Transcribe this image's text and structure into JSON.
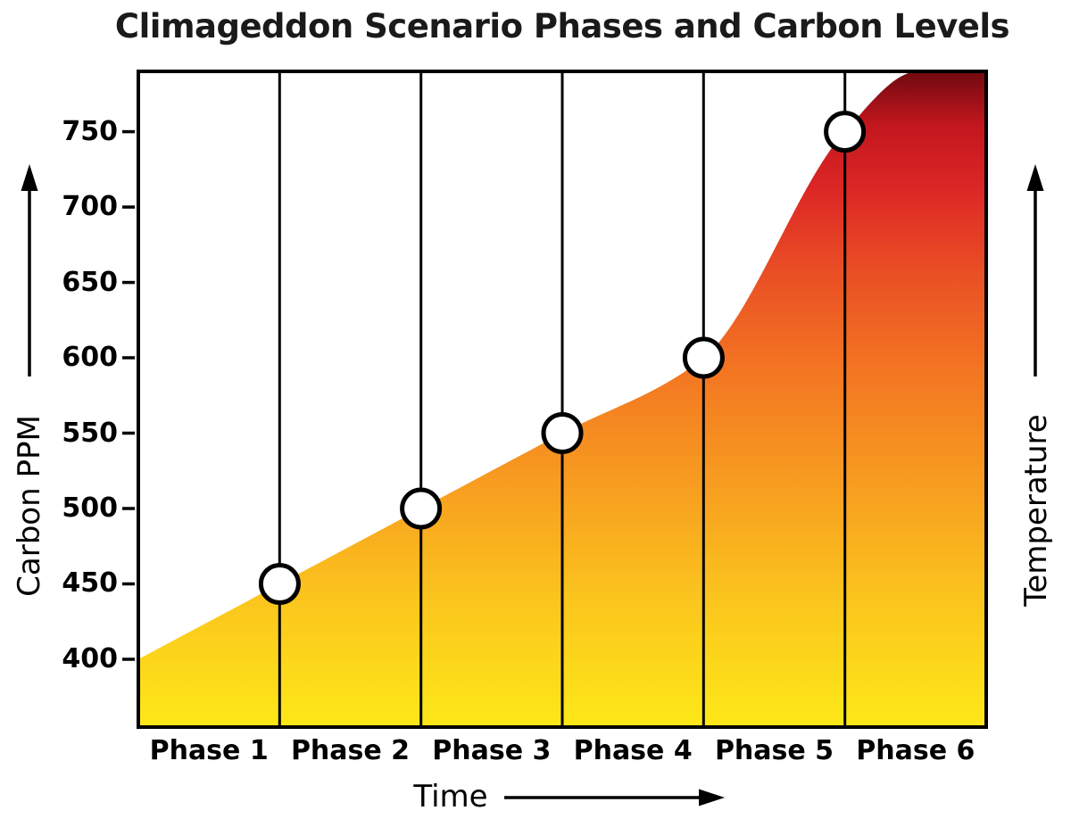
{
  "chart_data": {
    "type": "area",
    "title": "Climageddon Scenario Phases and Carbon Levels",
    "xlabel": "Time",
    "ylabel": "Carbon PPM",
    "ylabel_secondary": "Temperature",
    "categories": [
      "Phase 1",
      "Phase 2",
      "Phase 3",
      "Phase 4",
      "Phase 5",
      "Phase 6"
    ],
    "y_ticks": [
      400,
      450,
      500,
      550,
      600,
      650,
      700,
      750
    ],
    "ylim_plot": [
      355,
      790
    ],
    "series": [
      {
        "name": "Carbon PPM",
        "points": [
          {
            "x_frac": 0.0,
            "ppm": 400,
            "marker": false
          },
          {
            "x_frac": 0.1667,
            "ppm": 450,
            "marker": true
          },
          {
            "x_frac": 0.3333,
            "ppm": 500,
            "marker": true
          },
          {
            "x_frac": 0.5,
            "ppm": 550,
            "marker": true
          },
          {
            "x_frac": 0.6667,
            "ppm": 600,
            "marker": true
          },
          {
            "x_frac": 0.8333,
            "ppm": 750,
            "marker": true
          },
          {
            "x_frac": 0.92,
            "ppm": 790,
            "marker": false
          },
          {
            "x_frac": 1.0,
            "ppm": 790,
            "marker": false
          }
        ]
      }
    ],
    "gradient_stops": [
      {
        "offset": 0.0,
        "color": "#FDE818"
      },
      {
        "offset": 0.18,
        "color": "#FBC81D"
      },
      {
        "offset": 0.38,
        "color": "#F79B20"
      },
      {
        "offset": 0.55,
        "color": "#F37422"
      },
      {
        "offset": 0.7,
        "color": "#E94D25"
      },
      {
        "offset": 0.82,
        "color": "#DC2726"
      },
      {
        "offset": 0.92,
        "color": "#C2161E"
      },
      {
        "offset": 1.0,
        "color": "#70090F"
      }
    ],
    "marker_style": {
      "fill": "#FFFFFF",
      "stroke": "#000000",
      "radius": 21,
      "stroke_width": 5
    },
    "divider_color": "#000000",
    "border_color": "#000000",
    "layout_hints": {
      "legend": "none",
      "grid": "vertical-phase-dividers",
      "area_gradient_direction": "bottom-to-top",
      "y_axis_side": "left",
      "secondary_axis_side": "right"
    }
  }
}
